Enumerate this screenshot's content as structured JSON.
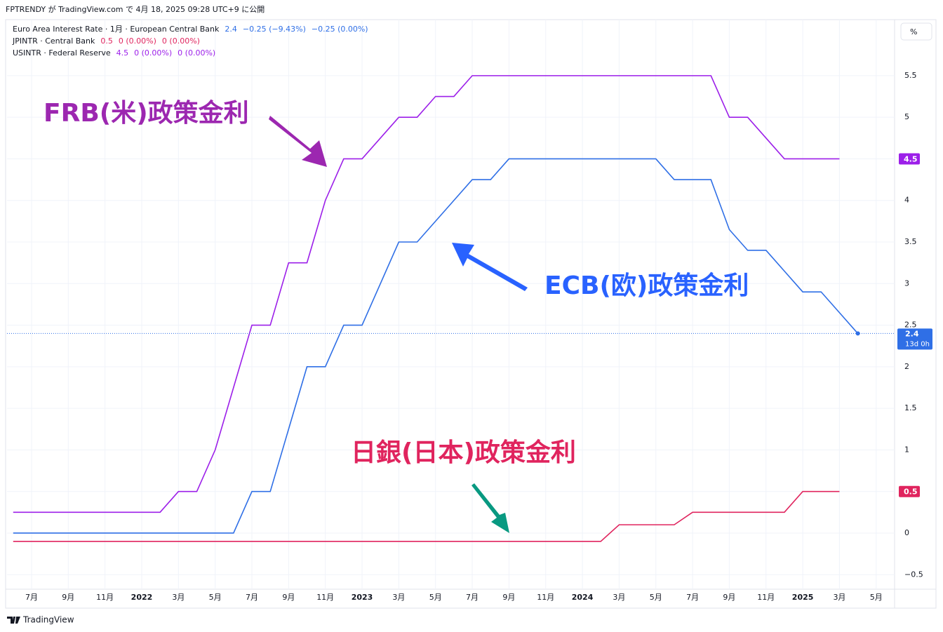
{
  "header": "FPTRENDY が TradingView.com で 4月 18, 2025 09:28 UTC+9 に公開",
  "footer": "TradingView",
  "scale_button": "%",
  "chart_data": {
    "type": "line",
    "categories": [
      null,
      "7月",
      null,
      "9月",
      null,
      "11月",
      null,
      "2022",
      null,
      "3月",
      null,
      "5月",
      null,
      "7月",
      null,
      "9月",
      null,
      "11月",
      null,
      "2023",
      null,
      "3月",
      null,
      "5月",
      null,
      "7月",
      null,
      "9月",
      null,
      "11月",
      null,
      "2024",
      null,
      "3月",
      null,
      "5月",
      null,
      "7月",
      null,
      "9月",
      null,
      "11月",
      null,
      "2025",
      null,
      "3月",
      null,
      "5月"
    ],
    "ylim": [
      -0.675,
      6.14
    ],
    "yticks": [
      {
        "value": -0.5,
        "label": "−0.5"
      },
      0,
      0.5,
      1,
      1.5,
      2,
      2.5,
      3,
      3.5,
      4,
      4.5,
      5,
      5.5
    ],
    "grid": true,
    "series": [
      {
        "name": "Euro Area Interest Rate · 1月 · European Central Bank",
        "color": "#2f6fe6",
        "legend_stats": [
          "2.4",
          "−0.25 (−9.43%)",
          "−0.25 (0.00%)"
        ],
        "countdown": "13d 0h",
        "values": [
          0,
          0,
          0,
          0,
          0,
          0,
          0,
          0,
          0,
          0,
          0,
          0,
          0,
          0.5,
          0.5,
          1.25,
          2,
          2,
          2.5,
          2.5,
          3,
          3.5,
          3.5,
          3.75,
          4,
          4.25,
          4.25,
          4.5,
          4.5,
          4.5,
          4.5,
          4.5,
          4.5,
          4.5,
          4.5,
          4.5,
          4.25,
          4.25,
          4.25,
          3.65,
          3.4,
          3.4,
          3.15,
          2.9,
          2.9,
          2.65,
          2.4,
          null
        ]
      },
      {
        "name": "JPINTR · Central Bank",
        "color": "#e0245e",
        "legend_stats": [
          "0.5",
          "0 (0.00%)",
          "0 (0.00%)"
        ],
        "values": [
          -0.1,
          -0.1,
          -0.1,
          -0.1,
          -0.1,
          -0.1,
          -0.1,
          -0.1,
          -0.1,
          -0.1,
          -0.1,
          -0.1,
          -0.1,
          -0.1,
          -0.1,
          -0.1,
          -0.1,
          -0.1,
          -0.1,
          -0.1,
          -0.1,
          -0.1,
          -0.1,
          -0.1,
          -0.1,
          -0.1,
          -0.1,
          -0.1,
          -0.1,
          -0.1,
          -0.1,
          -0.1,
          -0.1,
          0.1,
          0.1,
          0.1,
          0.1,
          0.25,
          0.25,
          0.25,
          0.25,
          0.25,
          0.25,
          0.5,
          0.5,
          0.5,
          null,
          null
        ]
      },
      {
        "name": "USINTR · Federal Reserve",
        "color": "#9c1fe9",
        "legend_stats": [
          "4.5",
          "0 (0.00%)",
          "0 (0.00%)"
        ],
        "values": [
          0.25,
          0.25,
          0.25,
          0.25,
          0.25,
          0.25,
          0.25,
          0.25,
          0.25,
          0.5,
          0.5,
          1,
          1.75,
          2.5,
          2.5,
          3.25,
          3.25,
          4,
          4.5,
          4.5,
          4.75,
          5,
          5,
          5.25,
          5.25,
          5.5,
          5.5,
          5.5,
          5.5,
          5.5,
          5.5,
          5.5,
          5.5,
          5.5,
          5.5,
          5.5,
          5.5,
          5.5,
          5.5,
          5,
          5,
          4.75,
          4.5,
          4.5,
          4.5,
          4.5,
          null,
          null
        ]
      }
    ],
    "annotations": [
      "FRB(米)政策金利",
      "ECB(欧)政策金利",
      "日銀(日本)政策金利"
    ]
  }
}
